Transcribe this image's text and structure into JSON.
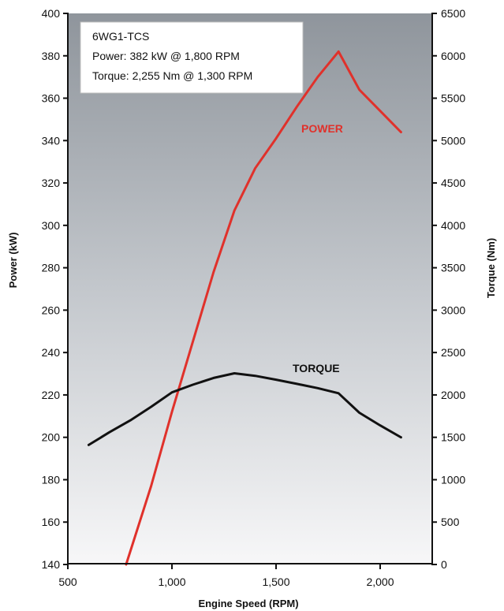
{
  "chart_data": {
    "type": "line",
    "info_box": [
      "6WG1-TCS",
      "Power: 382 kW @ 1,800 RPM",
      "Torque: 2,255 Nm @ 1,300 RPM"
    ],
    "xlabel": "Engine Speed (RPM)",
    "ylabel_left": "Power (kW)",
    "ylabel_right": "Torque (Nm)",
    "xlim": [
      500,
      2250
    ],
    "ylim_left": [
      140,
      400
    ],
    "ylim_right": [
      0,
      6500
    ],
    "x_ticks": [
      500,
      1000,
      1500,
      2000
    ],
    "x_tick_labels": [
      "500",
      "1,000",
      "1,500",
      "2,000"
    ],
    "y_left_ticks": [
      140,
      160,
      180,
      200,
      220,
      240,
      260,
      280,
      300,
      320,
      340,
      360,
      380,
      400
    ],
    "y_left_tick_labels": [
      "140",
      "160",
      "180",
      "200",
      "220",
      "240",
      "260",
      "280",
      "300",
      "320",
      "340",
      "360",
      "380",
      "400"
    ],
    "y_right_ticks": [
      0,
      500,
      1000,
      1500,
      2000,
      2500,
      3000,
      3500,
      4000,
      4500,
      5000,
      5500,
      6000,
      6500
    ],
    "y_right_tick_labels": [
      "0",
      "500",
      "1000",
      "1500",
      "2000",
      "2500",
      "3000",
      "3500",
      "4000",
      "4500",
      "5000",
      "5500",
      "6000",
      "6500"
    ],
    "grid": false,
    "series": [
      {
        "name": "POWER",
        "axis": "left",
        "color": "#e0312b",
        "x": [
          780,
          900,
          1000,
          1100,
          1200,
          1300,
          1400,
          1500,
          1600,
          1700,
          1800,
          1900,
          2000,
          2100
        ],
        "values": [
          140,
          177,
          212,
          245,
          278,
          307,
          327,
          341,
          356,
          370,
          382,
          364,
          354,
          344
        ]
      },
      {
        "name": "TORQUE",
        "axis": "right",
        "color": "#111111",
        "x": [
          600,
          700,
          800,
          900,
          1000,
          1100,
          1200,
          1300,
          1400,
          1500,
          1600,
          1700,
          1800,
          1900,
          2000,
          2100
        ],
        "values": [
          1410,
          1560,
          1700,
          1860,
          2030,
          2120,
          2200,
          2255,
          2225,
          2180,
          2130,
          2080,
          2020,
          1790,
          1640,
          1500
        ]
      }
    ]
  }
}
